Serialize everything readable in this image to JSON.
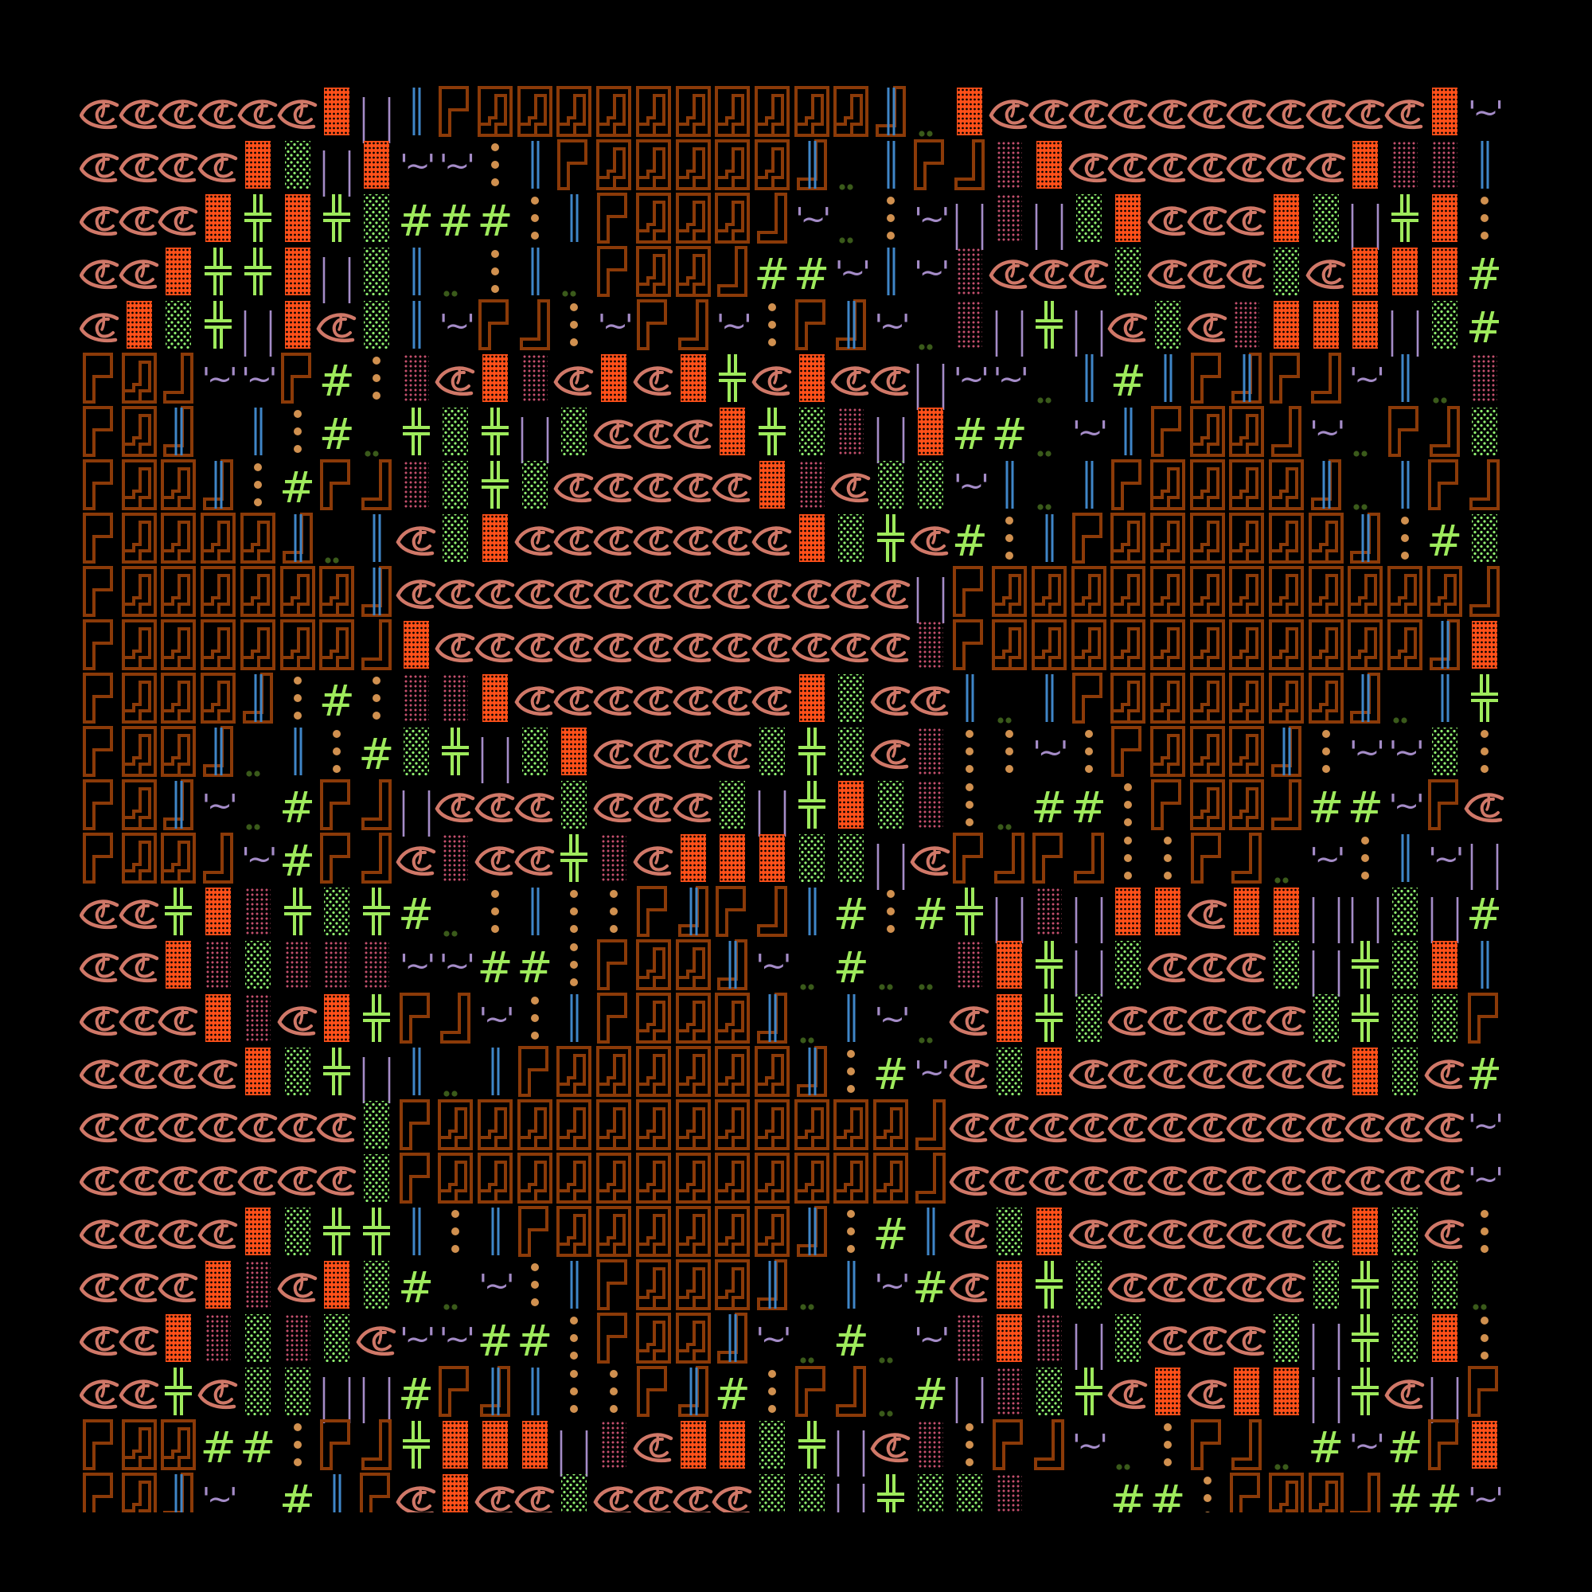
{
  "colors": {
    "background": "#000000",
    "eye": "#d07868",
    "brick": "#ff5019",
    "green_dots": "#8ff070",
    "pink_dots": "#c4506e",
    "green_cross": "#9eea5c",
    "purple_lines": "#a58cc8",
    "blue_lines": "#3f86c8",
    "brown_frame": "#8b3a08",
    "orange_dots": "#d0904f",
    "dark_green_dots": "#3a5a1a"
  },
  "glyph_legend": {
    "e": "eye-glyph",
    "B": "brick-block",
    "d": "green-dot-block",
    "p": "pink-dot-block",
    "+": "double-cross-glyph",
    "|": "purple-double-line",
    "b": "blue-double-line",
    "L": "corner-top-left-frame",
    "M": "maze-box-frame",
    "J": "corner-bottom-right-frame",
    "K": "blue-line-corner-frame",
    "~": "tilde-glyph",
    ":": "orange-dots-glyph",
    "#": "hash-glyph",
    ".": "double-dot-glyph",
    " ": "empty"
  },
  "glyph_text": {
    "tilde": "'~'",
    "hash": "#"
  },
  "rows": [
    "eeeeeeB|bLMMMMMMMMMMK.BeeeeeeeeeeeB~",
    "eeeeBd|B~~:bLMMMMMK.bLJpBeeeeeeeBppb",
    "eeeB+B+d###:bLMMMJ~.:~|p|dBeeeBd|+B:",
    "eeB++B|db.:b.LMMJ##~b~peeedeeedeBBB#",
    "eBd+|Bedb~LJ:~LJ~:LK~.p|+|edepBBB|d#",
    "LMJ~~L#:peBpeBeB+eBee|~~.b#bLKLJ~b.p",
    "LMK b:#.+d+|deeeB+dp|B##.~bLMMJ~.LJd",
    "LMMK:#LJpd+deeeeeBpedd~b.bLMMMMK.bLJ",
    "LMMMMK.bedBeeeeeeeBd+e#:bLMMMMMMK:#d",
    "LMMMMMMKeeeeeeeeeeeee|LMMMMMMMMMMMMJ",
    "LMMMMMMJBeeeeeeeeeeeepLMMMMMMMMMMMKB",
    "LMMMK:#:ppBeeeeeeeBdeeb.bLMMMMMMK.b+",
    "LMMK.b:#d+|dBeeeed+dep::~:LMMMK:~~d:",
    "LMK~.#LJ|eeedeeed|+Bdp:.##:LMMJ##~Le",
    "LMMJ~#LJepee+peBBBdd|eLJLJ::LJ.~:b~|",
    "ee+Bp+d+#.:b::LKLJb#:#+|p|BBeBB||d|#",
    "eeBpdppp~~##:LMMK~.#..pB+|deeed|+dBb",
    "eeeBpeB+LJ~:bLMMMK.b~.eB+deeeeed+ddL",
    "eeeeBd+|b.bLMMMMMMK:#~edBeeeeeeeBde#",
    "eeeeeeedLMMMMMMMMMMMMJeeeeeeeeeeeee~",
    "eeeeeeedLMMMMMMMMMMMMJeeeeeeeeeeeee~",
    "eeeeBd++b:bLMMMMMMK:#bedBeeeeeeeBde:",
    "eeeBpeBd#.~:bLMMMK.b~#eB+deeeeed+dd.",
    "eeBpdpde~~##:LMMK~.#.~pBp|deeed|+dB:",
    "ee+edd||#LKb::LK#:LJ.#|pd+eBeBB|+e|L",
    "LMM##:LJ+BBB|peBBd+|ep:LJ~.:LJ.#~#LB",
    "LMK~ #bLeBeedeeeedd|+ddp  ##:LMMJ##~b"
  ]
}
